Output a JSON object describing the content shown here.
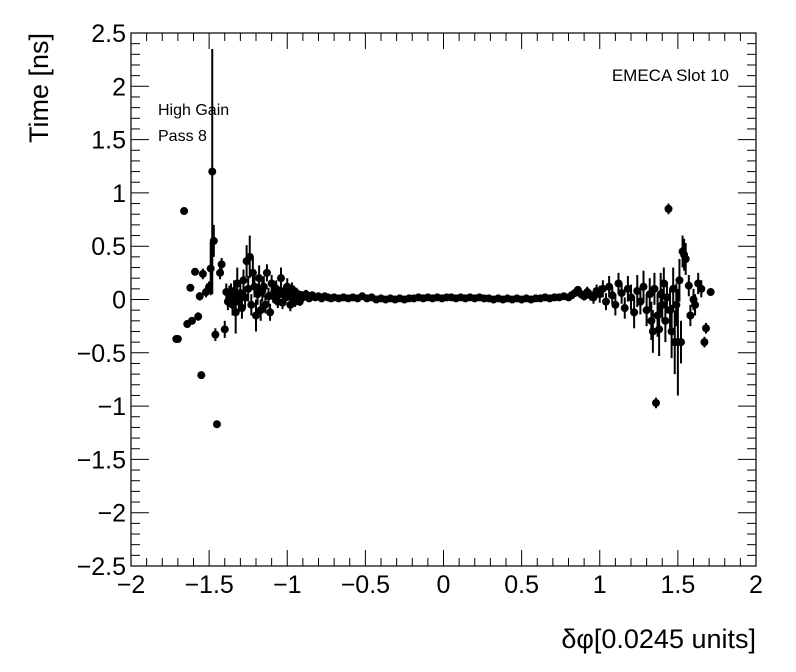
{
  "chart_data": {
    "type": "scatter",
    "title": "",
    "xlabel": "δφ[0.0245 units]",
    "ylabel": "Time [ns]",
    "xlim": [
      -2,
      2
    ],
    "ylim": [
      -2.5,
      2.5
    ],
    "x_ticks": [
      -2,
      -1.5,
      -1,
      -0.5,
      0,
      0.5,
      1,
      1.5,
      2
    ],
    "x_tick_labels": [
      "−2",
      "−1.5",
      "−1",
      "−0.5",
      "0",
      "0.5",
      "1",
      "1.5",
      "2"
    ],
    "y_ticks": [
      -2.5,
      -2,
      -1.5,
      -1,
      -0.5,
      0,
      0.5,
      1,
      1.5,
      2,
      2.5
    ],
    "y_tick_labels": [
      "−2.5",
      "−2",
      "−1.5",
      "−1",
      "−0.5",
      "0",
      "0.5",
      "1",
      "1.5",
      "2",
      "2.5"
    ],
    "grid": false,
    "legend": "none",
    "marker_color": "#000000",
    "annotations": {
      "top_right": "EMECA Slot 10",
      "top_left_line1": "High Gain",
      "top_left_line2": "Pass 8"
    },
    "series": [
      {
        "points": [
          [
            -1.71,
            -0.37,
            0.02
          ],
          [
            -1.7,
            -0.37,
            0.02
          ],
          [
            -1.66,
            0.83,
            0.02
          ],
          [
            -1.64,
            -0.23,
            0.03
          ],
          [
            -1.62,
            0.11,
            0.03
          ],
          [
            -1.61,
            -0.2,
            0.03
          ],
          [
            -1.59,
            0.26,
            0.03
          ],
          [
            -1.57,
            -0.16,
            0.04
          ],
          [
            -1.56,
            0.03,
            0.04
          ],
          [
            -1.55,
            -0.71,
            0.03
          ],
          [
            -1.54,
            0.24,
            0.05
          ],
          [
            -1.52,
            0.07,
            0.05
          ],
          [
            -1.5,
            0.12,
            0.05
          ],
          [
            -1.49,
            0.29,
            0.25
          ],
          [
            -1.48,
            1.2,
            1.15
          ],
          [
            -1.47,
            0.55,
            0.15
          ],
          [
            -1.46,
            -0.33,
            0.06
          ],
          [
            -1.45,
            -1.17,
            0.03
          ],
          [
            -1.43,
            0.25,
            0.06
          ],
          [
            -1.42,
            0.33,
            0.06
          ],
          [
            -1.4,
            -0.28,
            0.08
          ],
          [
            -1.39,
            0.07,
            0.08
          ],
          [
            -1.38,
            -0.02,
            0.08
          ],
          [
            -1.37,
            0.03,
            0.1
          ],
          [
            -1.36,
            0.05,
            0.1
          ],
          [
            -1.35,
            -0.05,
            0.1
          ],
          [
            -1.34,
            0.08,
            0.1
          ],
          [
            -1.33,
            -0.12,
            0.2
          ],
          [
            -1.32,
            0.15,
            0.15
          ],
          [
            -1.31,
            -0.02,
            0.1
          ],
          [
            -1.3,
            0.06,
            0.12
          ],
          [
            -1.29,
            -0.08,
            0.1
          ],
          [
            -1.28,
            0.18,
            0.1
          ],
          [
            -1.27,
            0.02,
            0.1
          ],
          [
            -1.26,
            0.36,
            0.15
          ],
          [
            -1.25,
            0.1,
            0.12
          ],
          [
            -1.24,
            0.4,
            0.2
          ],
          [
            -1.23,
            -0.05,
            0.1
          ],
          [
            -1.22,
            0.25,
            0.15
          ],
          [
            -1.21,
            0.12,
            0.1
          ],
          [
            -1.2,
            -0.15,
            0.15
          ],
          [
            -1.19,
            0.05,
            0.1
          ],
          [
            -1.18,
            0.2,
            0.12
          ],
          [
            -1.17,
            -0.1,
            0.1
          ],
          [
            -1.16,
            0.08,
            0.1
          ],
          [
            -1.15,
            0.12,
            0.1
          ],
          [
            -1.14,
            -0.05,
            0.08
          ],
          [
            -1.13,
            0.25,
            0.08
          ],
          [
            -1.12,
            0.03,
            0.08
          ],
          [
            -1.11,
            -0.12,
            0.08
          ],
          [
            -1.1,
            0.15,
            0.08
          ],
          [
            -1.09,
            0.05,
            0.08
          ],
          [
            -1.08,
            0.02,
            0.06
          ],
          [
            -1.07,
            0.1,
            0.08
          ],
          [
            -1.06,
            -0.02,
            0.06
          ],
          [
            -1.05,
            0.05,
            0.06
          ],
          [
            -1.04,
            0.2,
            0.1
          ],
          [
            -1.03,
            -0.03,
            0.06
          ],
          [
            -1.02,
            0.08,
            0.06
          ],
          [
            -1.01,
            0.02,
            0.05
          ],
          [
            -1.0,
            0.12,
            0.08
          ],
          [
            -0.99,
            0.05,
            0.06
          ],
          [
            -0.98,
            -0.05,
            0.06
          ],
          [
            -0.97,
            0.1,
            0.06
          ],
          [
            -0.96,
            0.02,
            0.05
          ],
          [
            -0.95,
            -0.02,
            0.05
          ],
          [
            -0.94,
            0.06,
            0.05
          ],
          [
            -0.93,
            0.03,
            0.05
          ],
          [
            -0.92,
            -0.02,
            0.04
          ],
          [
            -0.91,
            0.04,
            0.04
          ],
          [
            -0.9,
            0.02,
            0.04
          ],
          [
            -0.88,
            0.05,
            0.04
          ],
          [
            -0.86,
            0.01,
            0.03
          ],
          [
            -0.84,
            0.04,
            0.03
          ],
          [
            -0.82,
            0.02,
            0.03
          ],
          [
            -0.8,
            0.03,
            0.02
          ],
          [
            -0.78,
            0.01,
            0.02
          ],
          [
            -0.76,
            0.03,
            0.02
          ],
          [
            -0.74,
            0.02,
            0.02
          ],
          [
            -0.72,
            0.01,
            0.02
          ],
          [
            -0.7,
            0.02,
            0.02
          ],
          [
            -0.67,
            0.01,
            0.01
          ],
          [
            -0.64,
            0.02,
            0.01
          ],
          [
            -0.61,
            0.01,
            0.01
          ],
          [
            -0.58,
            0.02,
            0.01
          ],
          [
            -0.55,
            0.01,
            0.01
          ],
          [
            -0.52,
            0.03,
            0.01
          ],
          [
            -0.49,
            0.01,
            0.01
          ],
          [
            -0.46,
            0.02,
            0.01
          ],
          [
            -0.43,
            0.0,
            0.01
          ],
          [
            -0.4,
            0.01,
            0.01
          ],
          [
            -0.37,
            0.0,
            0.01
          ],
          [
            -0.34,
            0.01,
            0.01
          ],
          [
            -0.31,
            0.0,
            0.01
          ],
          [
            -0.28,
            0.01,
            0.01
          ],
          [
            -0.25,
            0.0,
            0.01
          ],
          [
            -0.22,
            0.01,
            0.01
          ],
          [
            -0.19,
            0.01,
            0.01
          ],
          [
            -0.16,
            0.02,
            0.01
          ],
          [
            -0.13,
            0.01,
            0.01
          ],
          [
            -0.1,
            0.02,
            0.01
          ],
          [
            -0.07,
            0.01,
            0.01
          ],
          [
            -0.04,
            0.02,
            0.01
          ],
          [
            -0.01,
            0.01,
            0.01
          ],
          [
            0.02,
            0.02,
            0.01
          ],
          [
            0.05,
            0.02,
            0.01
          ],
          [
            0.08,
            0.01,
            0.01
          ],
          [
            0.11,
            0.02,
            0.01
          ],
          [
            0.14,
            0.01,
            0.01
          ],
          [
            0.17,
            0.02,
            0.01
          ],
          [
            0.2,
            0.01,
            0.01
          ],
          [
            0.23,
            0.02,
            0.01
          ],
          [
            0.26,
            0.01,
            0.01
          ],
          [
            0.29,
            0.01,
            0.01
          ],
          [
            0.32,
            0.0,
            0.01
          ],
          [
            0.35,
            0.01,
            0.01
          ],
          [
            0.38,
            0.0,
            0.01
          ],
          [
            0.41,
            0.01,
            0.01
          ],
          [
            0.44,
            0.0,
            0.01
          ],
          [
            0.47,
            0.01,
            0.01
          ],
          [
            0.5,
            0.0,
            0.01
          ],
          [
            0.53,
            0.01,
            0.01
          ],
          [
            0.56,
            0.0,
            0.01
          ],
          [
            0.59,
            0.01,
            0.01
          ],
          [
            0.62,
            0.01,
            0.01
          ],
          [
            0.65,
            0.02,
            0.01
          ],
          [
            0.68,
            0.01,
            0.01
          ],
          [
            0.71,
            0.02,
            0.02
          ],
          [
            0.74,
            0.02,
            0.02
          ],
          [
            0.77,
            0.03,
            0.02
          ],
          [
            0.8,
            0.02,
            0.02
          ],
          [
            0.82,
            0.04,
            0.03
          ],
          [
            0.84,
            0.06,
            0.03
          ],
          [
            0.86,
            0.09,
            0.03
          ],
          [
            0.88,
            0.05,
            0.04
          ],
          [
            0.9,
            0.03,
            0.04
          ],
          [
            0.92,
            0.07,
            0.05
          ],
          [
            0.94,
            0.04,
            0.05
          ],
          [
            0.96,
            0.02,
            0.06
          ],
          [
            0.98,
            0.08,
            0.06
          ],
          [
            1.0,
            0.05,
            0.08
          ],
          [
            1.02,
            0.1,
            0.08
          ],
          [
            1.04,
            -0.02,
            0.08
          ],
          [
            1.06,
            0.12,
            0.1
          ],
          [
            1.08,
            0.04,
            0.08
          ],
          [
            1.1,
            -0.05,
            0.1
          ],
          [
            1.12,
            0.15,
            0.1
          ],
          [
            1.14,
            0.06,
            0.1
          ],
          [
            1.16,
            -0.08,
            0.1
          ],
          [
            1.18,
            0.1,
            0.12
          ],
          [
            1.2,
            0.02,
            0.12
          ],
          [
            1.22,
            -0.12,
            0.15
          ],
          [
            1.24,
            0.08,
            0.15
          ],
          [
            1.26,
            -0.02,
            0.12
          ],
          [
            1.28,
            0.12,
            0.15
          ],
          [
            1.3,
            -0.1,
            0.15
          ],
          [
            1.32,
            0.05,
            0.15
          ],
          [
            1.33,
            -0.2,
            0.18
          ],
          [
            1.34,
            -0.3,
            0.2
          ],
          [
            1.35,
            0.1,
            0.15
          ],
          [
            1.36,
            -0.97,
            0.05
          ],
          [
            1.37,
            -0.15,
            0.2
          ],
          [
            1.38,
            -0.28,
            0.25
          ],
          [
            1.39,
            0.05,
            0.2
          ],
          [
            1.4,
            -0.05,
            0.15
          ],
          [
            1.41,
            0.15,
            0.15
          ],
          [
            1.42,
            -0.2,
            0.2
          ],
          [
            1.43,
            0.02,
            0.15
          ],
          [
            1.44,
            0.85,
            0.05
          ],
          [
            1.45,
            -0.1,
            0.2
          ],
          [
            1.46,
            -0.3,
            0.25
          ],
          [
            1.47,
            0.1,
            0.2
          ],
          [
            1.48,
            -0.4,
            0.3
          ],
          [
            1.49,
            -0.05,
            0.2
          ],
          [
            1.5,
            -0.4,
            0.5
          ],
          [
            1.51,
            0.18,
            0.2
          ],
          [
            1.52,
            -0.4,
            0.2
          ],
          [
            1.53,
            0.45,
            0.15
          ],
          [
            1.54,
            0.42,
            0.15
          ],
          [
            1.55,
            0.38,
            0.15
          ],
          [
            1.57,
            0.13,
            0.1
          ],
          [
            1.58,
            -0.15,
            0.1
          ],
          [
            1.6,
            0.0,
            0.1
          ],
          [
            1.61,
            -0.05,
            0.1
          ],
          [
            1.63,
            0.15,
            0.1
          ],
          [
            1.65,
            0.1,
            0.08
          ],
          [
            1.67,
            -0.4,
            0.05
          ],
          [
            1.68,
            -0.27,
            0.05
          ],
          [
            1.71,
            0.07,
            0.03
          ]
        ]
      }
    ]
  }
}
